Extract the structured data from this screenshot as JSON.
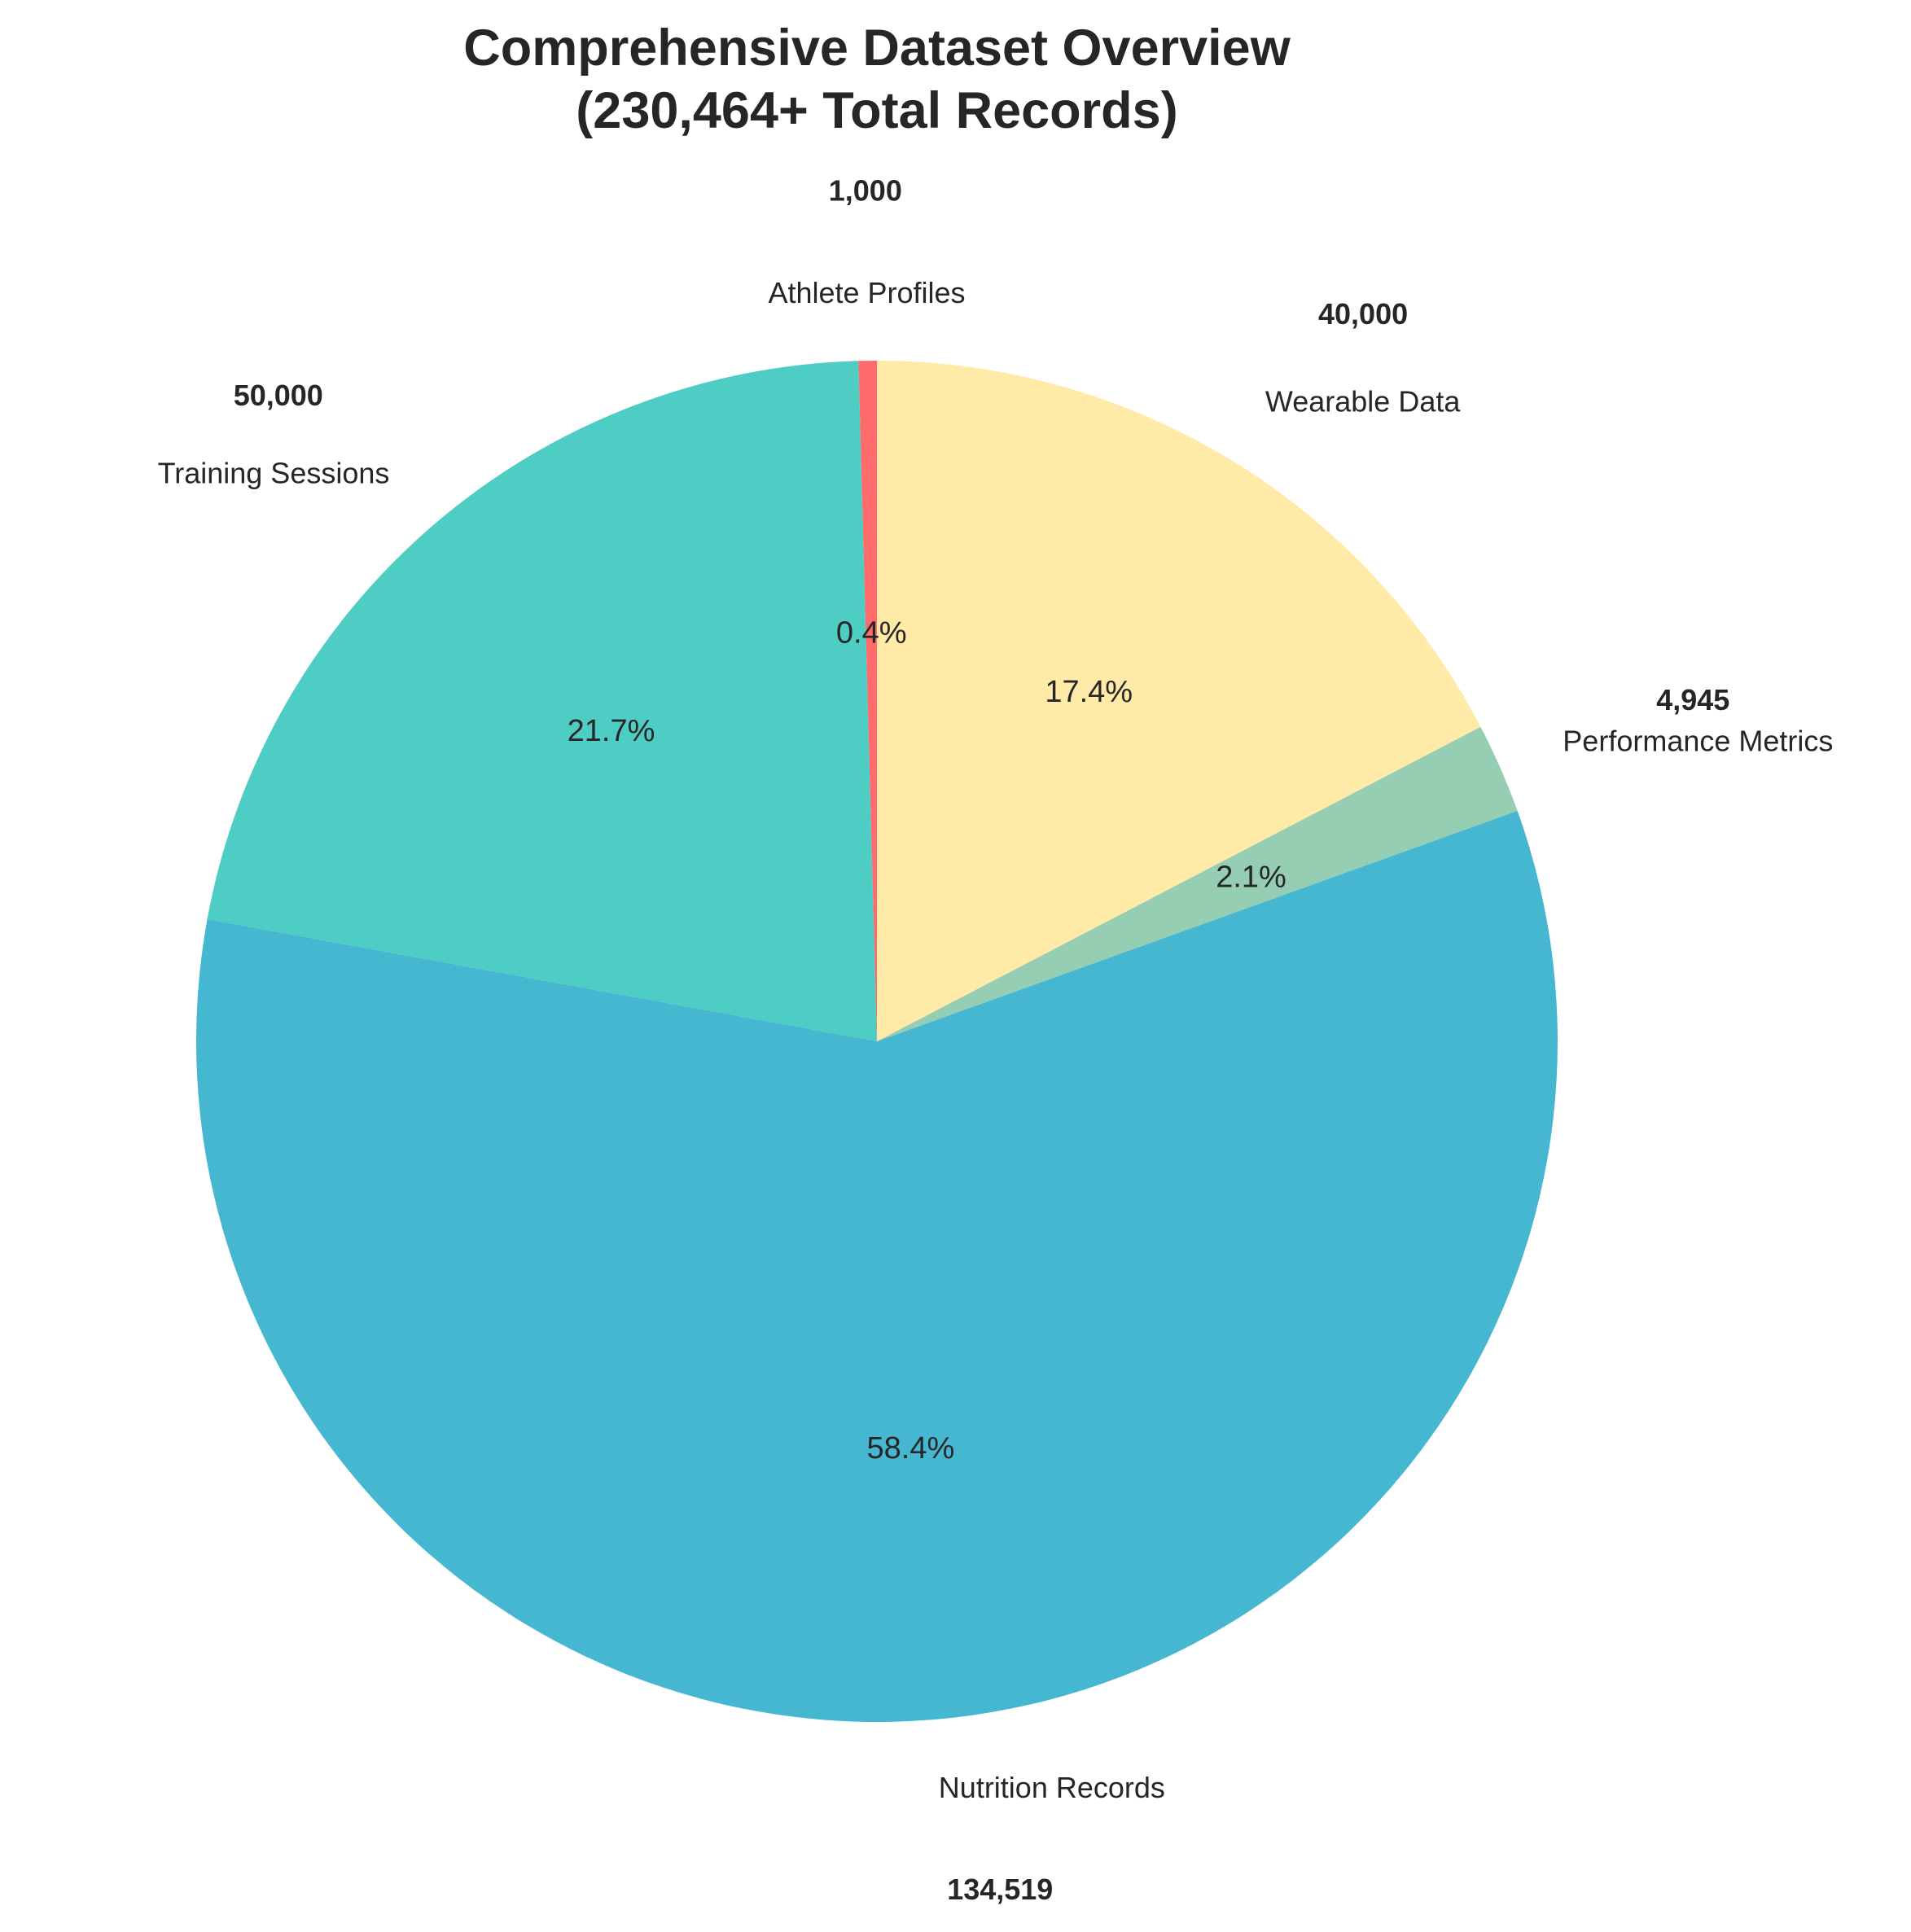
{
  "chart_data": {
    "type": "pie",
    "title_lines": [
      "Comprehensive Dataset Overview",
      "(230,464+ Total Records)"
    ],
    "start_angle_deg": 90,
    "direction": "counterclockwise",
    "slices": [
      {
        "label": "Athlete Profiles",
        "value": 1000,
        "count_label": "1,000",
        "pct_label": "0.4%",
        "color": "#FF6B6B"
      },
      {
        "label": "Training Sessions",
        "value": 50000,
        "count_label": "50,000",
        "pct_label": "21.7%",
        "color": "#4ECDC4"
      },
      {
        "label": "Nutrition Records",
        "value": 134519,
        "count_label": "134,519",
        "pct_label": "58.4%",
        "color": "#45B7D1"
      },
      {
        "label": "Performance Metrics",
        "value": 4945,
        "count_label": "4,945",
        "pct_label": "2.1%",
        "color": "#96CEB4"
      },
      {
        "label": "Wearable Data",
        "value": 40000,
        "count_label": "40,000",
        "pct_label": "17.4%",
        "color": "#FFEAA7"
      }
    ]
  }
}
